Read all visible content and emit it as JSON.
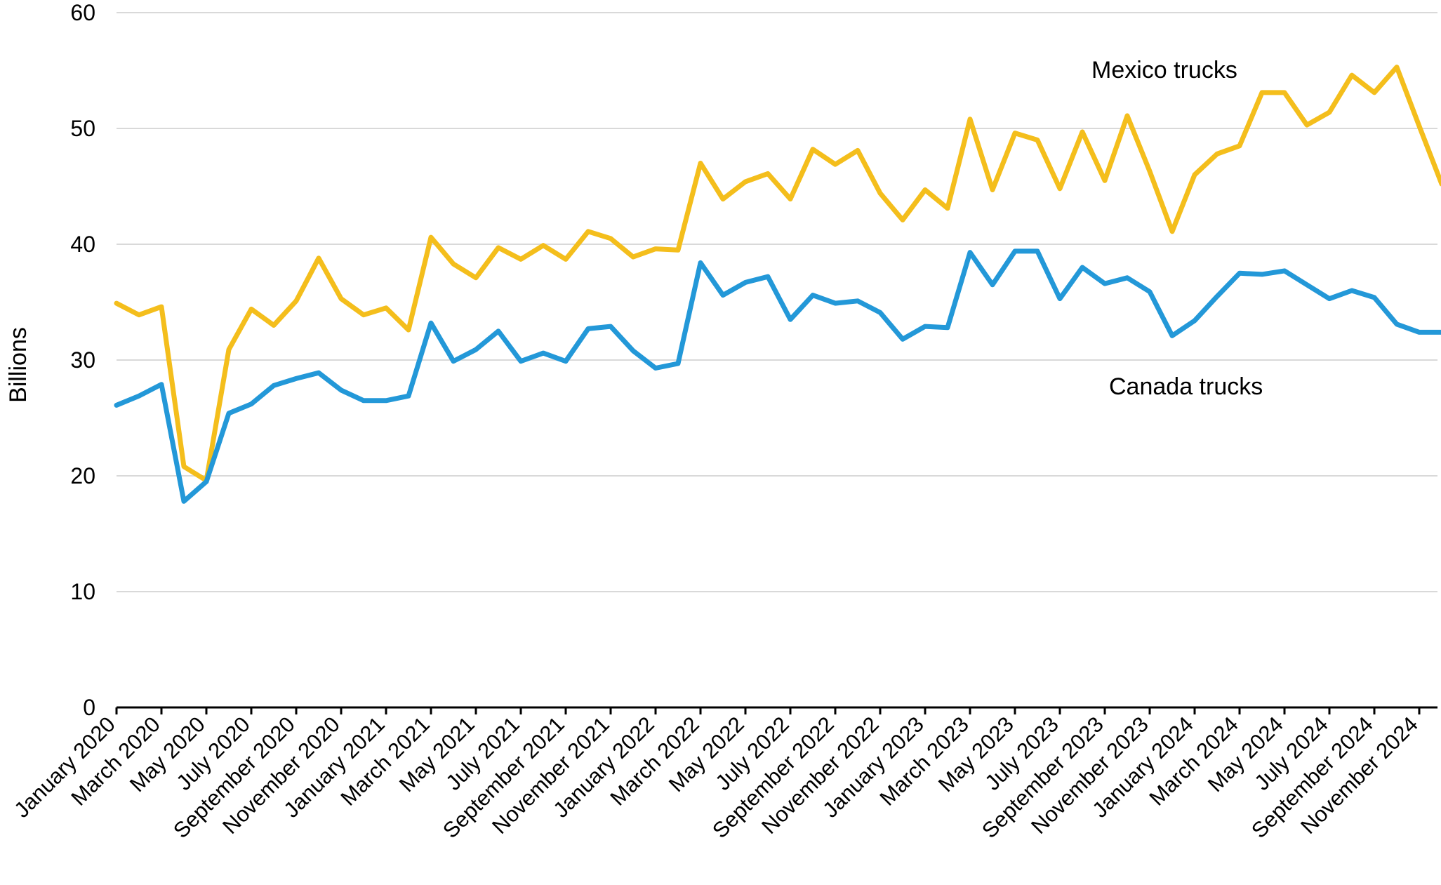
{
  "chart_data": {
    "type": "line",
    "ylabel": "Billions",
    "ylim": [
      0,
      60
    ],
    "yticks": [
      0,
      10,
      20,
      30,
      40,
      50,
      60
    ],
    "grid": true,
    "months": [
      "January 2020",
      "February 2020",
      "March 2020",
      "April 2020",
      "May 2020",
      "June 2020",
      "July 2020",
      "August 2020",
      "September 2020",
      "October 2020",
      "November 2020",
      "December 2020",
      "January 2021",
      "February 2021",
      "March 2021",
      "April 2021",
      "May 2021",
      "June 2021",
      "July 2021",
      "August 2021",
      "September 2021",
      "October 2021",
      "November 2021",
      "December 2021",
      "January 2022",
      "February 2022",
      "March 2022",
      "April 2022",
      "May 2022",
      "June 2022",
      "July 2022",
      "August 2022",
      "September 2022",
      "October 2022",
      "November 2022",
      "December 2022",
      "January 2023",
      "February 2023",
      "March 2023",
      "April 2023",
      "May 2023",
      "June 2023",
      "July 2023",
      "August 2023",
      "September 2023",
      "October 2023",
      "November 2023",
      "December 2023",
      "January 2024",
      "February 2024",
      "March 2024",
      "April 2024",
      "May 2024",
      "June 2024",
      "July 2024",
      "August 2024",
      "September 2024",
      "October 2024",
      "November 2024",
      "December 2024"
    ],
    "tick_labels": [
      "January 2020",
      "March 2020",
      "May 2020",
      "July 2020",
      "September 2020",
      "November 2020",
      "January 2021",
      "March 2021",
      "May 2021",
      "July 2021",
      "September 2021",
      "November 2021",
      "January 2022",
      "March 2022",
      "May 2022",
      "July 2022",
      "September 2022",
      "November 2022",
      "January 2023",
      "March 2023",
      "May 2023",
      "July 2023",
      "September 2023",
      "November 2023",
      "January 2024",
      "March 2024",
      "May 2024",
      "July 2024",
      "September 2024",
      "November 2024"
    ],
    "series": [
      {
        "name": "Mexico trucks",
        "color": "#F4BE1C",
        "values": [
          34.9,
          33.9,
          34.6,
          20.8,
          19.6,
          30.9,
          34.4,
          33.0,
          35.1,
          38.8,
          35.3,
          33.9,
          34.5,
          32.6,
          40.6,
          38.3,
          37.1,
          39.7,
          38.7,
          39.9,
          38.7,
          41.1,
          40.5,
          38.9,
          39.6,
          39.5,
          47.0,
          43.9,
          45.4,
          46.1,
          43.9,
          48.2,
          46.9,
          48.1,
          44.4,
          42.1,
          44.7,
          43.1,
          50.8,
          44.7,
          49.6,
          49.0,
          44.8,
          49.7,
          45.5,
          51.1,
          46.3,
          41.1,
          46.0,
          47.8,
          48.5,
          53.1,
          53.1,
          50.3,
          51.4,
          54.6,
          53.1,
          55.3,
          50.2,
          45.2
        ]
      },
      {
        "name": "Canada trucks",
        "color": "#2398D8",
        "values": [
          26.1,
          26.9,
          27.9,
          17.8,
          19.5,
          25.4,
          26.2,
          27.8,
          28.4,
          28.9,
          27.4,
          26.5,
          26.5,
          26.9,
          33.2,
          29.9,
          30.9,
          32.5,
          29.9,
          30.6,
          29.9,
          32.7,
          32.9,
          30.8,
          29.3,
          29.7,
          38.4,
          35.6,
          36.7,
          37.2,
          33.5,
          35.6,
          34.9,
          35.1,
          34.1,
          31.8,
          32.9,
          32.8,
          39.3,
          36.5,
          39.4,
          39.4,
          35.3,
          38.0,
          36.6,
          37.1,
          35.9,
          32.1,
          33.4,
          35.5,
          37.5,
          37.4,
          37.7,
          36.5,
          35.3,
          36.0,
          35.4,
          33.1,
          32.4,
          32.4
        ]
      }
    ]
  }
}
